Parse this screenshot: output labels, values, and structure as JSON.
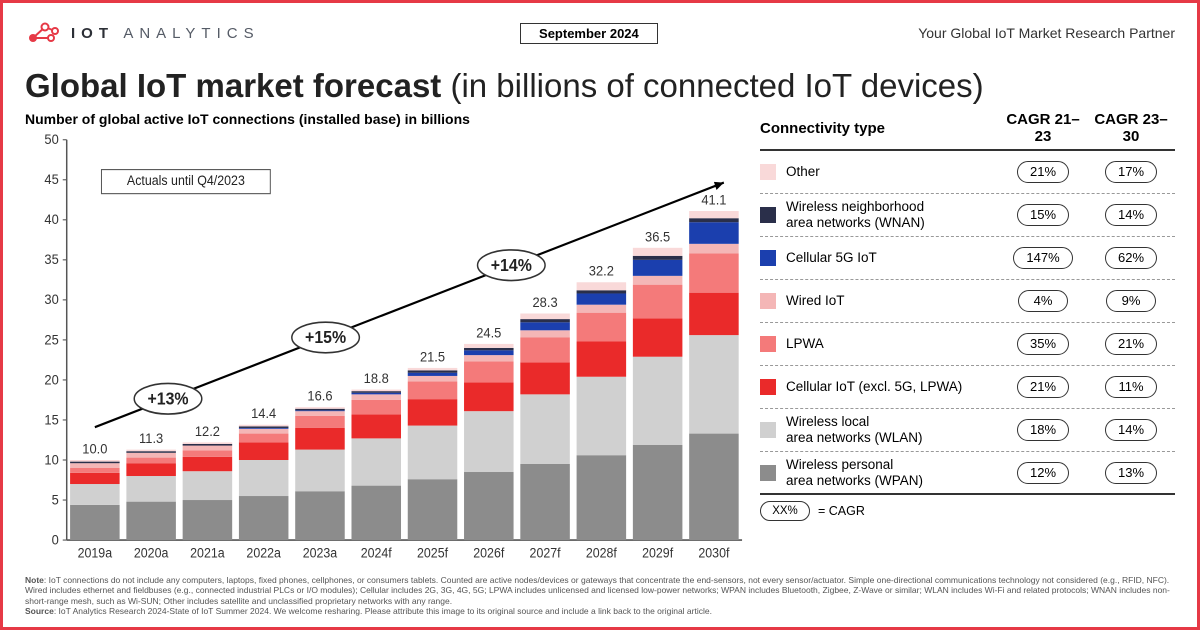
{
  "header": {
    "brand_bold": "IOT",
    "brand_rest": " ANALYTICS",
    "date": "September 2024",
    "tagline": "Your Global IoT Market Research Partner",
    "logo_color": "#e63946"
  },
  "title_bold": "Global IoT market forecast",
  "title_rest": " (in billions of connected IoT devices)",
  "chart": {
    "subtitle": "Number of global active IoT connections (installed base) in billions",
    "y_axis": {
      "min": 0,
      "max": 50,
      "step": 5
    },
    "x_labels": [
      "2019a",
      "2020a",
      "2021a",
      "2022a",
      "2023a",
      "2024f",
      "2025f",
      "2026f",
      "2027f",
      "2028f",
      "2029f",
      "2030f"
    ],
    "totals": [
      10.0,
      11.3,
      12.2,
      14.4,
      16.6,
      18.8,
      21.5,
      24.5,
      28.3,
      32.2,
      36.5,
      41.1
    ],
    "actuals_note": "Actuals until Q4/2023",
    "growth_pills": [
      "+13%",
      "+15%",
      "+14%"
    ],
    "series": [
      {
        "key": "wpan",
        "label": "Wireless personal\narea networks (WPAN)",
        "color": "#8c8c8c",
        "values": [
          4.4,
          4.8,
          5.0,
          5.5,
          6.1,
          6.8,
          7.6,
          8.5,
          9.5,
          10.6,
          11.9,
          13.3
        ]
      },
      {
        "key": "wlan",
        "label": "Wireless local\narea networks (WLAN)",
        "color": "#d0d0d0",
        "values": [
          2.6,
          3.2,
          3.6,
          4.5,
          5.2,
          5.9,
          6.7,
          7.6,
          8.7,
          9.8,
          11.0,
          12.3
        ]
      },
      {
        "key": "cell",
        "label": "Cellular IoT (excl. 5G, LPWA)",
        "color": "#ea2a2a",
        "values": [
          1.4,
          1.6,
          1.8,
          2.2,
          2.7,
          3.0,
          3.3,
          3.6,
          4.0,
          4.4,
          4.8,
          5.3
        ]
      },
      {
        "key": "lpwa",
        "label": "LPWA",
        "color": "#f47a7a",
        "values": [
          0.6,
          0.7,
          0.8,
          1.1,
          1.5,
          1.8,
          2.2,
          2.6,
          3.1,
          3.6,
          4.2,
          4.9
        ]
      },
      {
        "key": "wired",
        "label": "Wired IoT",
        "color": "#f4b6b6",
        "values": [
          0.6,
          0.6,
          0.6,
          0.6,
          0.6,
          0.7,
          0.7,
          0.8,
          0.9,
          1.0,
          1.1,
          1.2
        ]
      },
      {
        "key": "5g",
        "label": "Cellular 5G IoT",
        "color": "#1b3fae",
        "values": [
          0.0,
          0.0,
          0.0,
          0.1,
          0.1,
          0.2,
          0.4,
          0.6,
          1.0,
          1.4,
          2.0,
          2.7
        ]
      },
      {
        "key": "wnan",
        "label": "Wireless neighborhood\narea networks (WNAN)",
        "color": "#2a2f4a",
        "values": [
          0.2,
          0.2,
          0.2,
          0.2,
          0.2,
          0.2,
          0.3,
          0.3,
          0.4,
          0.4,
          0.5,
          0.5
        ]
      },
      {
        "key": "other",
        "label": "Other",
        "color": "#f9d9d9",
        "values": [
          0.2,
          0.2,
          0.2,
          0.2,
          0.2,
          0.2,
          0.3,
          0.5,
          0.7,
          1.0,
          1.0,
          0.9
        ]
      }
    ]
  },
  "legend": {
    "head_type": "Connectivity type",
    "head_c1": "CAGR 21–23",
    "head_c2": "CAGR 23–30",
    "rows": [
      {
        "swatch": "#f9d9d9",
        "label": "Other",
        "c1": "21%",
        "c2": "17%"
      },
      {
        "swatch": "#2a2f4a",
        "label": "Wireless neighborhood<br>area networks (WNAN)",
        "c1": "15%",
        "c2": "14%"
      },
      {
        "swatch": "#1b3fae",
        "label": "Cellular 5G IoT",
        "c1": "147%",
        "c2": "62%"
      },
      {
        "swatch": "#f4b6b6",
        "label": "Wired IoT",
        "c1": "4%",
        "c2": "9%"
      },
      {
        "swatch": "#f47a7a",
        "label": "LPWA",
        "c1": "35%",
        "c2": "21%"
      },
      {
        "swatch": "#ea2a2a",
        "label": "Cellular IoT (excl. 5G, LPWA)",
        "c1": "21%",
        "c2": "11%"
      },
      {
        "swatch": "#d0d0d0",
        "label": "Wireless local<br>area networks (WLAN)",
        "c1": "18%",
        "c2": "14%"
      },
      {
        "swatch": "#8c8c8c",
        "label": "Wireless personal<br>area networks (WPAN)",
        "c1": "12%",
        "c2": "13%"
      }
    ],
    "foot_symbol": "XX%",
    "foot_label": "= CAGR"
  },
  "footnote": {
    "note_label": "Note",
    "note_text": ": IoT connections do not include any computers, laptops, fixed phones, cellphones, or consumers tablets. Counted are active nodes/devices or gateways that concentrate the end-sensors, not every sensor/actuator. Simple one-directional communications technology not considered (e.g., RFID, NFC). Wired includes ethernet and fieldbuses (e.g., connected industrial PLCs or I/O modules); Cellular includes 2G, 3G, 4G, 5G; LPWA includes unlicensed and licensed low-power networks; WPAN includes Bluetooth, Zigbee, Z-Wave or similar; WLAN includes Wi-Fi and related protocols; WNAN includes non-short-range mesh, such as Wi-SUN; Other includes satellite and unclassified proprietary networks with any range.",
    "source_label": "Source",
    "source_text": ": IoT Analytics Research 2024-State of IoT Summer 2024. We welcome resharing. Please attribute this image to its original source and include a link back to the original article."
  }
}
